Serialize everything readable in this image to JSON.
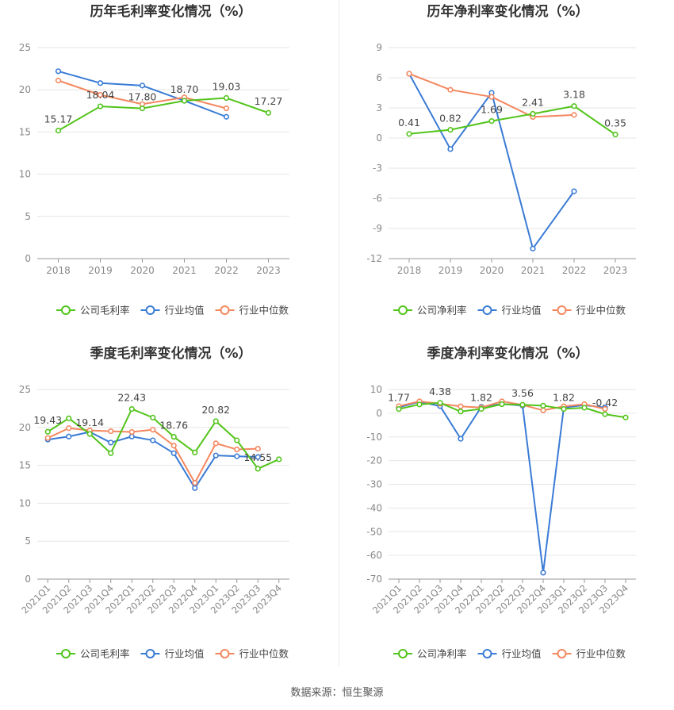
{
  "source_text": "数据来源：恒生聚源",
  "colors": {
    "company": "#52c41a",
    "avg": "#3a7bd5",
    "median": "#f4875f",
    "grid": "#e6e6e6",
    "axis": "#888888",
    "title": "#333333"
  },
  "chart_data": [
    {
      "id": "annual-gross",
      "type": "line",
      "title": "历年毛利率变化情况（%）",
      "categories": [
        "2018",
        "2019",
        "2020",
        "2021",
        "2022",
        "2023"
      ],
      "ylim": [
        0,
        25
      ],
      "yticks": [
        0,
        5,
        10,
        15,
        20,
        25
      ],
      "legend_position": "bottom",
      "series": [
        {
          "name": "公司毛利率",
          "key": "company",
          "values": [
            15.17,
            18.04,
            17.8,
            18.7,
            19.03,
            17.27
          ],
          "labels": [
            "15.17",
            "18.04",
            "17.80",
            "18.70",
            "19.03",
            "17.27"
          ]
        },
        {
          "name": "行业均值",
          "key": "avg",
          "values": [
            22.2,
            20.8,
            20.5,
            18.7,
            16.8,
            null
          ]
        },
        {
          "name": "行业中位数",
          "key": "median",
          "values": [
            21.1,
            19.4,
            18.3,
            19.1,
            17.8,
            null
          ]
        }
      ]
    },
    {
      "id": "annual-net",
      "type": "line",
      "title": "历年净利率变化情况（%）",
      "categories": [
        "2018",
        "2019",
        "2020",
        "2021",
        "2022",
        "2023"
      ],
      "ylim": [
        -12,
        9
      ],
      "yticks": [
        -12,
        -9,
        -6,
        -3,
        0,
        3,
        6,
        9
      ],
      "legend_position": "bottom",
      "series": [
        {
          "name": "公司净利率",
          "key": "company",
          "values": [
            0.41,
            0.82,
            1.69,
            2.41,
            3.18,
            0.35
          ],
          "labels": [
            "0.41",
            "0.82",
            "1.69",
            "2.41",
            "3.18",
            "0.35"
          ]
        },
        {
          "name": "行业均值",
          "key": "avg",
          "values": [
            6.4,
            -1.1,
            4.5,
            -11.0,
            -5.3,
            null
          ]
        },
        {
          "name": "行业中位数",
          "key": "median",
          "values": [
            6.4,
            4.8,
            4.1,
            2.1,
            2.3,
            null
          ]
        }
      ]
    },
    {
      "id": "quarterly-gross",
      "type": "line",
      "title": "季度毛利率变化情况（%）",
      "categories": [
        "2021Q1",
        "2021Q2",
        "2021Q3",
        "2021Q4",
        "2022Q1",
        "2022Q2",
        "2022Q3",
        "2022Q4",
        "2023Q1",
        "2023Q2",
        "2023Q3",
        "2023Q4"
      ],
      "ylim": [
        0,
        25
      ],
      "yticks": [
        0,
        5,
        10,
        15,
        20,
        25
      ],
      "legend_position": "bottom",
      "series": [
        {
          "name": "公司毛利率",
          "key": "company",
          "values": [
            19.43,
            21.2,
            19.14,
            16.6,
            22.43,
            21.3,
            18.76,
            16.7,
            20.82,
            18.3,
            14.55,
            15.8
          ],
          "labels": [
            "19.43",
            "",
            "19.14",
            "",
            "22.43",
            "",
            "18.76",
            "",
            "20.82",
            "",
            "14.55",
            ""
          ]
        },
        {
          "name": "行业均值",
          "key": "avg",
          "values": [
            18.4,
            18.8,
            19.4,
            18.0,
            18.8,
            18.3,
            16.6,
            12.0,
            16.3,
            16.2,
            16.1,
            null
          ]
        },
        {
          "name": "行业中位数",
          "key": "median",
          "values": [
            18.6,
            19.9,
            19.6,
            19.5,
            19.4,
            19.7,
            17.6,
            12.7,
            17.9,
            17.1,
            17.2,
            null
          ]
        }
      ]
    },
    {
      "id": "quarterly-net",
      "type": "line",
      "title": "季度净利率变化情况（%）",
      "categories": [
        "2021Q1",
        "2021Q2",
        "2021Q3",
        "2021Q4",
        "2022Q1",
        "2022Q2",
        "2022Q3",
        "2022Q4",
        "2023Q1",
        "2023Q2",
        "2023Q3",
        "2023Q4"
      ],
      "ylim": [
        -70,
        10
      ],
      "yticks": [
        -70,
        -60,
        -50,
        -40,
        -30,
        -20,
        -10,
        0,
        10
      ],
      "legend_position": "bottom",
      "series": [
        {
          "name": "公司净利率",
          "key": "company",
          "values": [
            1.77,
            3.7,
            4.38,
            0.7,
            1.82,
            3.8,
            3.56,
            3.2,
            1.82,
            2.3,
            -0.42,
            -1.8
          ],
          "labels": [
            "1.77",
            "",
            "4.38",
            "",
            "1.82",
            "",
            "3.56",
            "",
            "1.82",
            "",
            "-0.42",
            ""
          ]
        },
        {
          "name": "行业均值",
          "key": "avg",
          "values": [
            2.5,
            4.8,
            3.0,
            -10.8,
            2.7,
            3.9,
            3.2,
            -67.3,
            2.4,
            3.4,
            2.4,
            null
          ]
        },
        {
          "name": "行业中位数",
          "key": "median",
          "values": [
            3.0,
            5.0,
            4.0,
            2.9,
            2.4,
            5.0,
            3.5,
            1.2,
            2.9,
            3.8,
            1.8,
            null
          ]
        }
      ]
    }
  ]
}
